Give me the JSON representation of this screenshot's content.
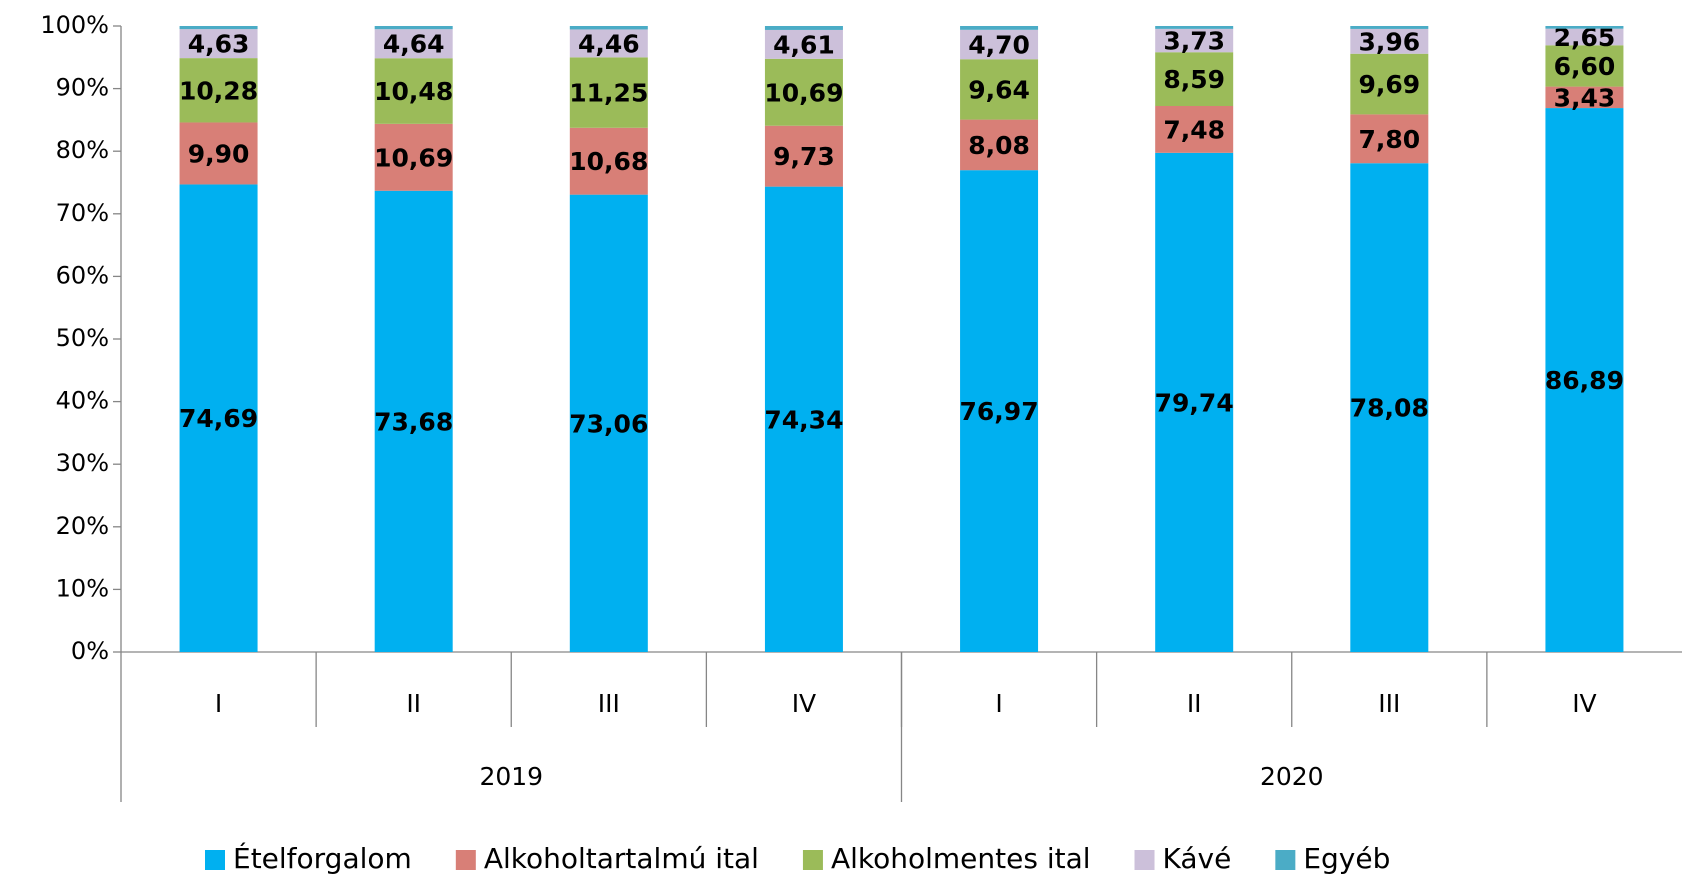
{
  "chart_data": {
    "type": "stacked_bar",
    "categories": [
      "I",
      "II",
      "III",
      "IV",
      "I",
      "II",
      "III",
      "IV"
    ],
    "groups": [
      {
        "label": "2019",
        "count": 4
      },
      {
        "label": "2020",
        "count": 4
      }
    ],
    "ylim": [
      0,
      100
    ],
    "yticks": [
      {
        "value": 0,
        "label": "0%"
      },
      {
        "value": 10,
        "label": "10%"
      },
      {
        "value": 20,
        "label": "20%"
      },
      {
        "value": 30,
        "label": "30%"
      },
      {
        "value": 40,
        "label": "40%"
      },
      {
        "value": 50,
        "label": "50%"
      },
      {
        "value": 60,
        "label": "60%"
      },
      {
        "value": 70,
        "label": "70%"
      },
      {
        "value": 80,
        "label": "80%"
      },
      {
        "value": 90,
        "label": "90%"
      },
      {
        "value": 100,
        "label": "100%"
      }
    ],
    "legend": "bottom",
    "series": [
      {
        "name": "Ételforgalom",
        "color": "#00b0f0",
        "values": [
          74.69,
          73.68,
          73.06,
          74.34,
          76.97,
          79.74,
          78.08,
          86.89
        ],
        "value_labels": [
          "74,69",
          "73,68",
          "73,06",
          "74,34",
          "76,97",
          "79,74",
          "78,08",
          "86,89"
        ]
      },
      {
        "name": "Alkoholtartalmú ital",
        "color": "#d87f77",
        "values": [
          9.9,
          10.69,
          10.68,
          9.73,
          8.08,
          7.48,
          7.8,
          3.43
        ],
        "value_labels": [
          "9,90",
          "10,69",
          "10,68",
          "9,73",
          "8,08",
          "7,48",
          "7,80",
          "3,43"
        ]
      },
      {
        "name": "Alkoholmentes ital",
        "color": "#9bbb59",
        "values": [
          10.28,
          10.48,
          11.25,
          10.69,
          9.64,
          8.59,
          9.69,
          6.6
        ],
        "value_labels": [
          "10,28",
          "10,48",
          "11,25",
          "10,69",
          "9,64",
          "8,59",
          "9,69",
          "6,60"
        ]
      },
      {
        "name": "Kávé",
        "color": "#ccc0da",
        "values": [
          4.63,
          4.64,
          4.46,
          4.61,
          4.7,
          3.73,
          3.96,
          2.65
        ],
        "value_labels": [
          "4,63",
          "4,64",
          "4,46",
          "4,61",
          "4,70",
          "3,73",
          "3,96",
          "2,65"
        ]
      },
      {
        "name": "Egyéb",
        "color": "#4bacc6",
        "values": [
          0.5,
          0.51,
          0.55,
          0.63,
          0.61,
          0.46,
          0.47,
          0.43
        ]
      }
    ]
  }
}
